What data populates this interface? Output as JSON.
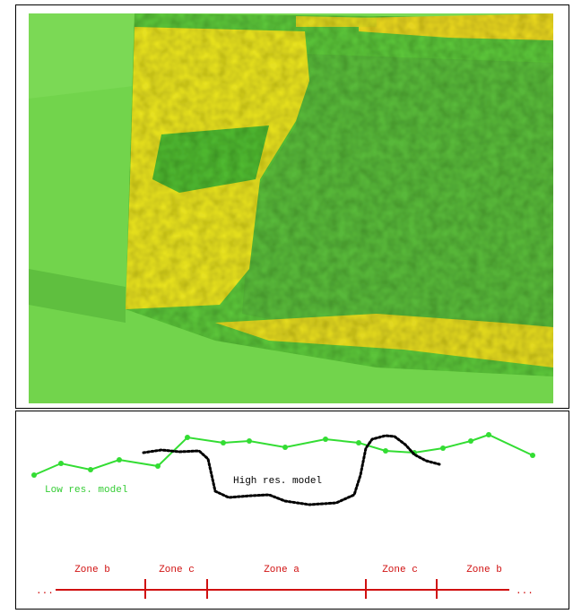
{
  "diagram": {
    "labels": {
      "low_res": "Low res. model",
      "high_res": "High res. model"
    },
    "zones": [
      "Zone b",
      "Zone c",
      "Zone a",
      "Zone c",
      "Zone b"
    ],
    "ellipsis_left": "...",
    "ellipsis_right": "..."
  }
}
